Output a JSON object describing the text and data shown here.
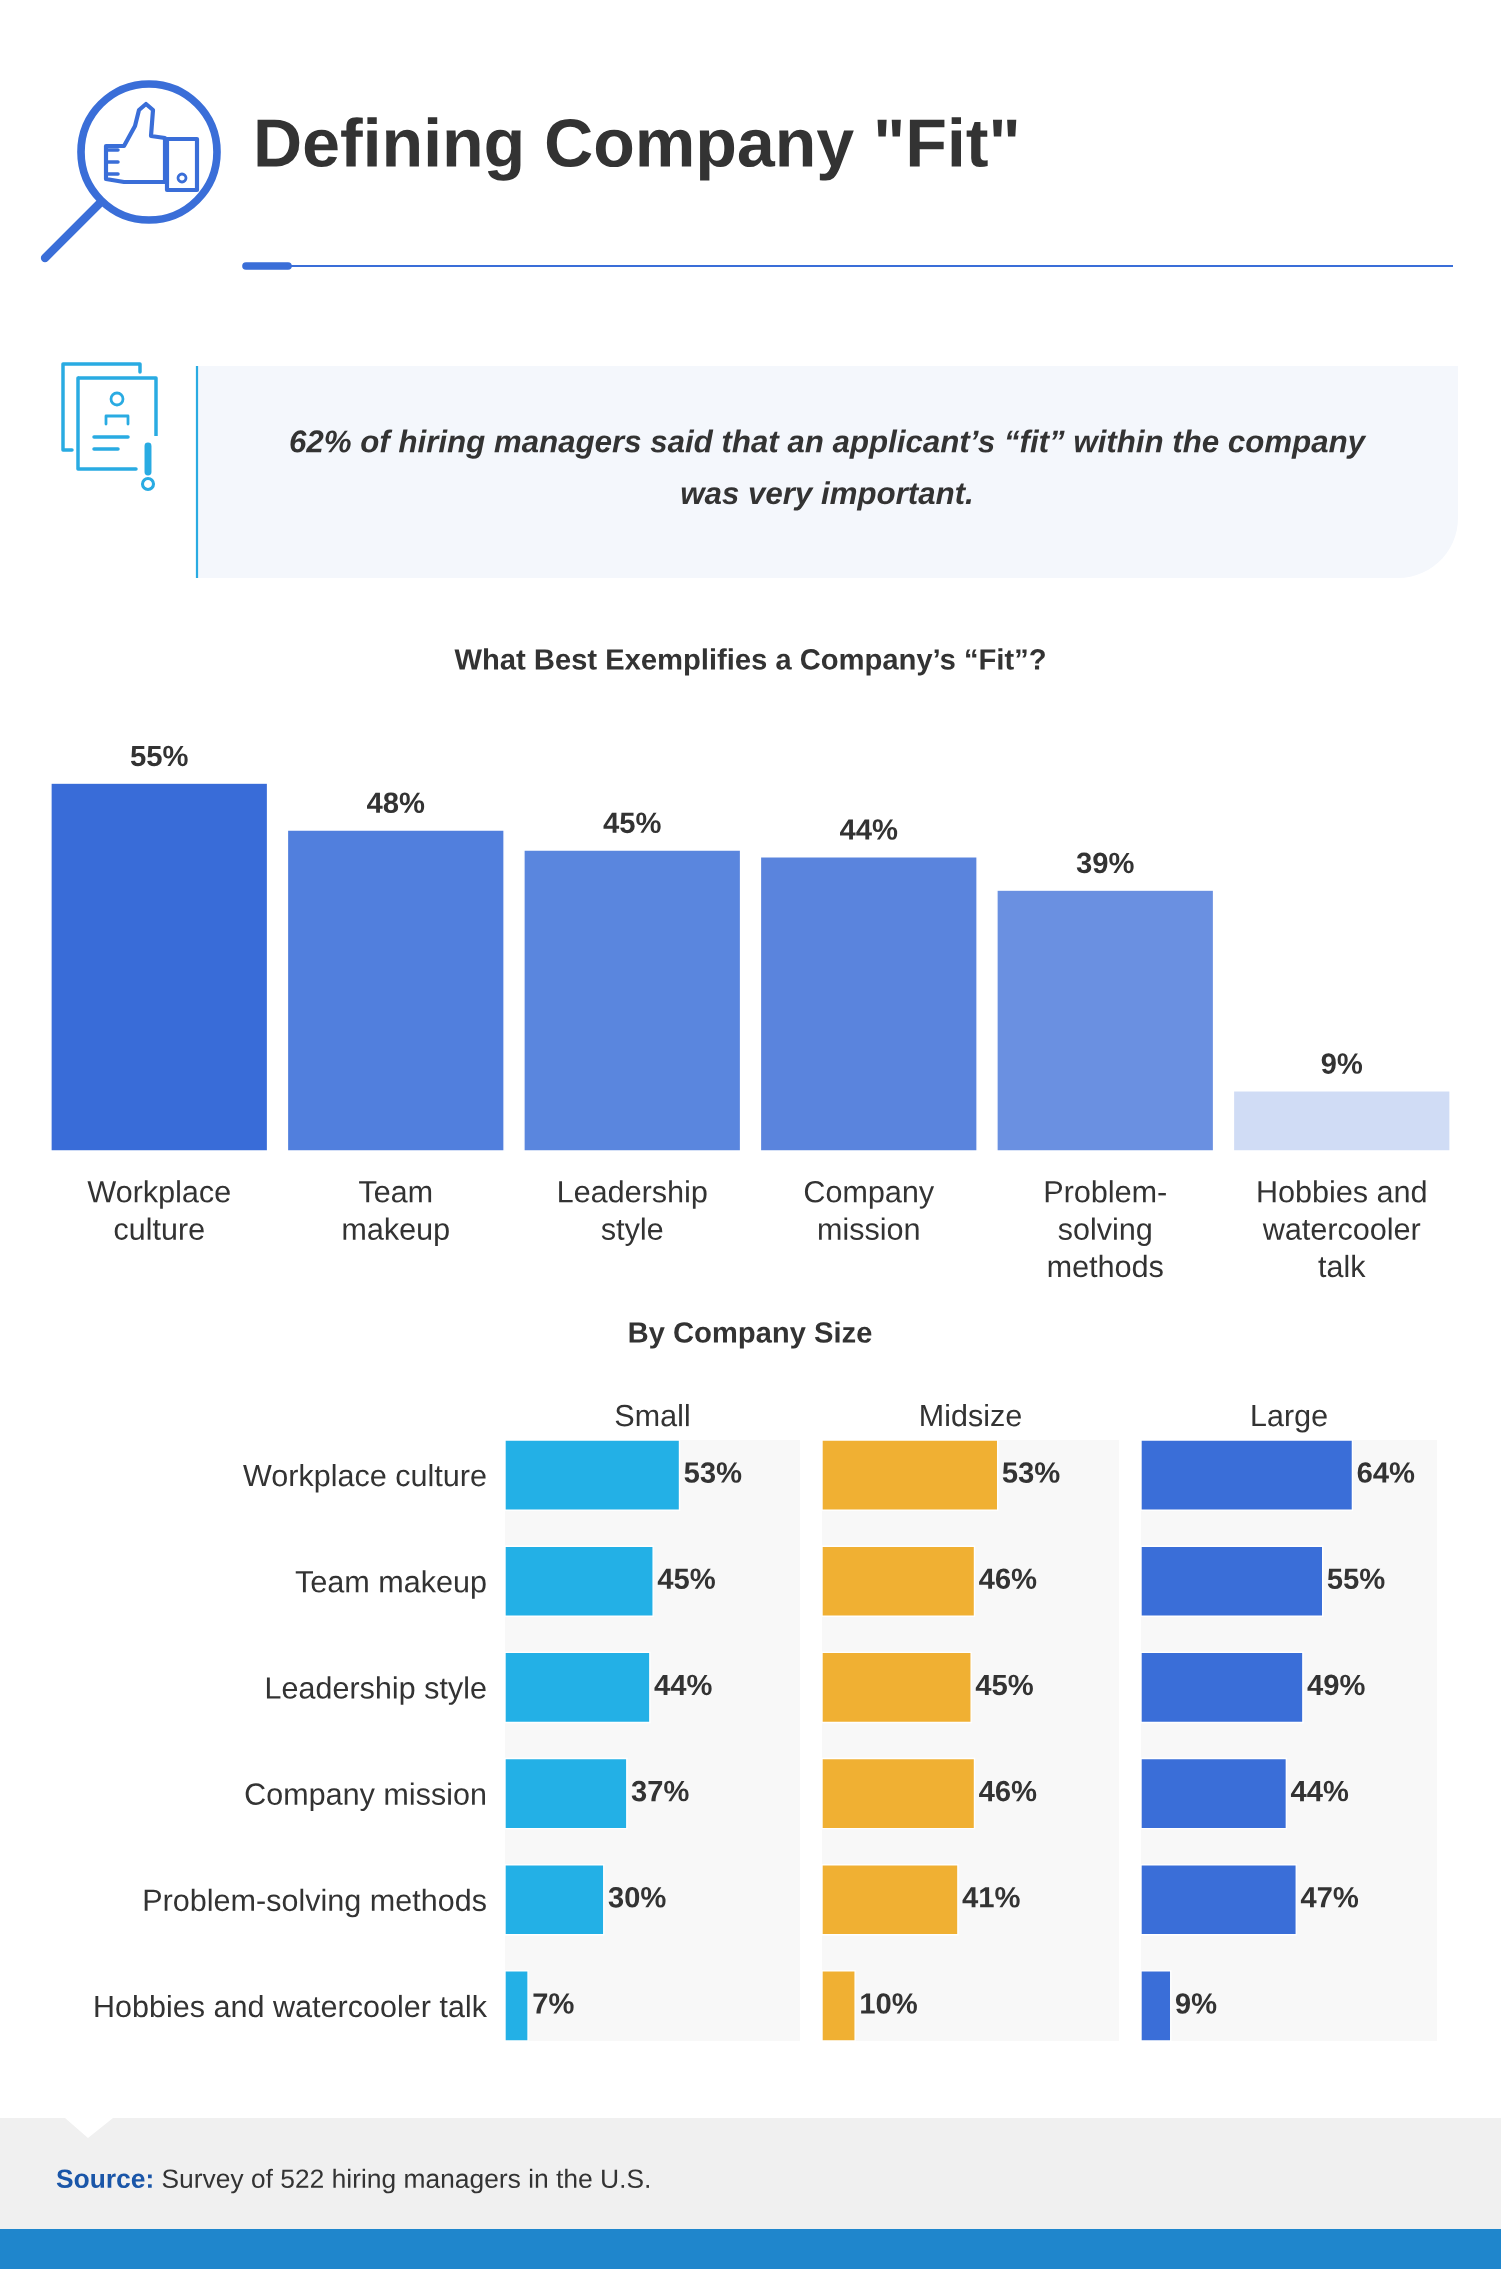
{
  "chart_data": [
    {
      "type": "other",
      "title": "Defining Company \"Fit\"",
      "annotations": [
        "62% of hiring managers said that an applicant’s “fit” within the company\nwas very important."
      ]
    },
    {
      "type": "bar",
      "title": "What Best Exemplifies a Company’s “Fit”?",
      "categories": [
        "Workplace\nculture",
        "Team\nmakeup",
        "Leadership\nstyle",
        "Company\nmission",
        "Problem-\nsolving\nmethods",
        "Hobbies and\nwatercooler\ntalk"
      ],
      "values": [
        55,
        48,
        45,
        44,
        39,
        9
      ],
      "colors": [
        "#396cd8",
        "#517fdd",
        "#5a86de",
        "#5a84dd",
        "#6a90e1",
        "#d0dcf5"
      ],
      "value_labels": [
        "55%",
        "48%",
        "45%",
        "44%",
        "39%",
        "9%"
      ]
    },
    {
      "type": "other",
      "title": "By Company Size"
    },
    {
      "type": "bar",
      "orientation": "horizontal",
      "title": "Small",
      "categories": [
        "Workplace culture",
        "Team makeup",
        "Leadership style",
        "Company mission",
        "Problem-solving methods",
        "Hobbies and watercooler talk"
      ],
      "values": [
        53,
        45,
        44,
        37,
        30,
        7
      ],
      "color": "#23b0e6",
      "value_labels": [
        "53%",
        "45%",
        "44%",
        "37%",
        "30%",
        "7%"
      ],
      "tick_labels": "y"
    },
    {
      "type": "bar",
      "orientation": "horizontal",
      "title": "Midsize",
      "categories": [
        null,
        null,
        null,
        null,
        null,
        null
      ],
      "values": [
        53,
        46,
        45,
        46,
        41,
        10
      ],
      "color": "#f0b033",
      "value_labels": [
        "53%",
        "46%",
        "45%",
        "46%",
        "41%",
        "10%"
      ]
    },
    {
      "type": "bar",
      "orientation": "horizontal",
      "title": "Large",
      "categories": [
        null,
        null,
        null,
        null,
        null,
        null
      ],
      "values": [
        64,
        55,
        49,
        44,
        47,
        9
      ],
      "color": "#3a6ed8",
      "value_labels": [
        "64%",
        "55%",
        "49%",
        "44%",
        "47%",
        "9%"
      ]
    },
    {
      "type": "other",
      "annotations": [
        "Source: Survey of 522 hiring managers in the U.S."
      ]
    }
  ]
}
